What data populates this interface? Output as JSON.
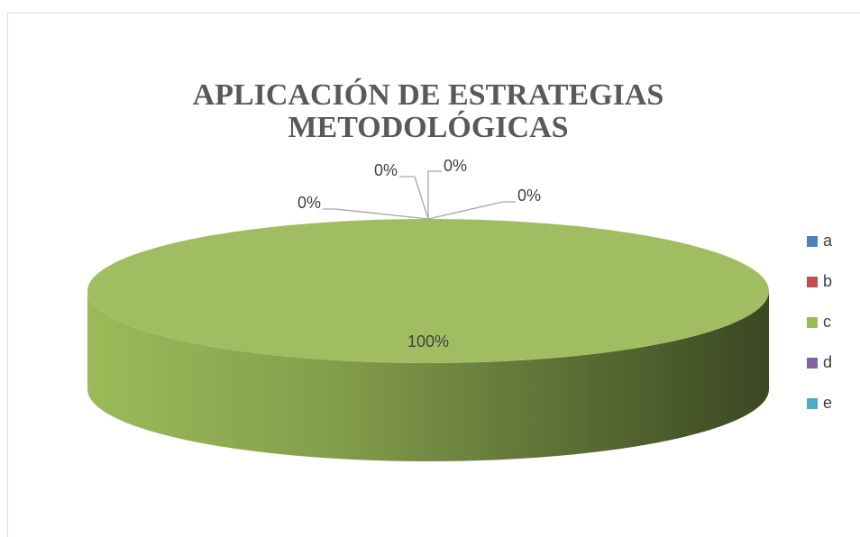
{
  "chart_data": {
    "type": "pie",
    "three_d": true,
    "title": "APLICACIÓN DE ESTRATEGIAS METODOLÓGICAS",
    "categories": [
      "a",
      "b",
      "c",
      "d",
      "e"
    ],
    "values": [
      0,
      0,
      100,
      0,
      0
    ],
    "value_labels": [
      "0%",
      "0%",
      "100%",
      "0%",
      "0%"
    ],
    "colors": [
      "#4f81bd",
      "#c0504d",
      "#9bbb59",
      "#8064a2",
      "#4bacc6"
    ],
    "legend": "right"
  }
}
